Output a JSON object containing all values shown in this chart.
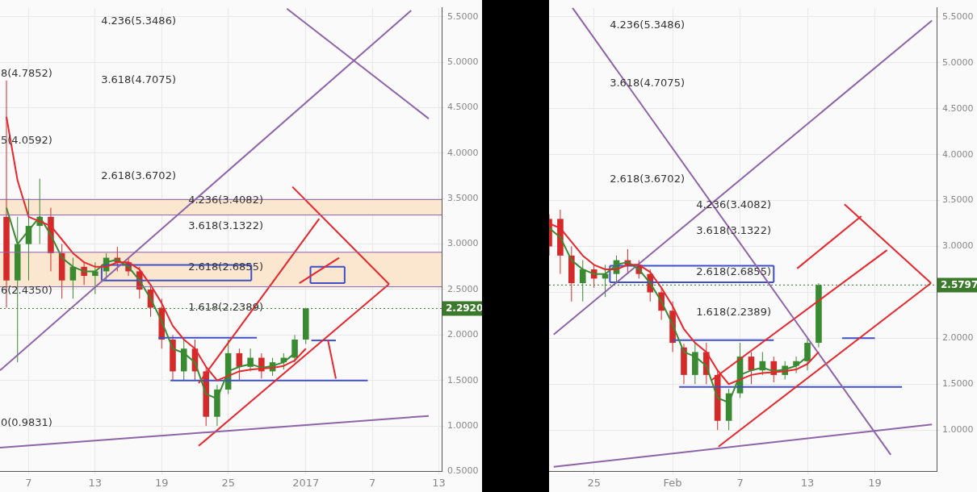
{
  "chart_data": [
    {
      "type": "candlestick",
      "x": [
        "2016-12-05",
        "2016-12-06",
        "2016-12-07",
        "2016-12-08",
        "2016-12-09",
        "2016-12-10",
        "2016-12-11",
        "2016-12-12",
        "2016-12-13",
        "2016-12-14",
        "2016-12-15",
        "2016-12-16",
        "2016-12-17",
        "2016-12-18",
        "2016-12-19",
        "2016-12-20",
        "2016-12-21",
        "2016-12-22",
        "2016-12-23",
        "2016-12-24",
        "2016-12-25",
        "2016-12-26",
        "2016-12-27",
        "2016-12-28",
        "2016-12-29",
        "2016-12-30",
        "2016-12-31",
        "2017-01-01"
      ],
      "ohlc": [
        [
          3.3,
          4.8,
          2.3,
          2.6
        ],
        [
          2.6,
          3.3,
          1.7,
          3.0
        ],
        [
          3.0,
          3.5,
          2.6,
          3.2
        ],
        [
          3.2,
          3.72,
          3.0,
          3.3
        ],
        [
          3.3,
          3.4,
          2.7,
          2.9
        ],
        [
          2.9,
          3.0,
          2.4,
          2.6
        ],
        [
          2.6,
          2.85,
          2.4,
          2.75
        ],
        [
          2.75,
          2.8,
          2.55,
          2.65
        ],
        [
          2.65,
          2.8,
          2.45,
          2.7
        ],
        [
          2.7,
          2.9,
          2.6,
          2.85
        ],
        [
          2.85,
          2.97,
          2.7,
          2.8
        ],
        [
          2.8,
          2.85,
          2.65,
          2.7
        ],
        [
          2.7,
          2.75,
          2.4,
          2.5
        ],
        [
          2.5,
          2.55,
          2.2,
          2.3
        ],
        [
          2.3,
          2.4,
          1.85,
          1.95
        ],
        [
          1.95,
          2.0,
          1.5,
          1.6
        ],
        [
          1.6,
          1.95,
          1.5,
          1.85
        ],
        [
          1.85,
          1.95,
          1.5,
          1.6
        ],
        [
          1.6,
          1.65,
          1.0,
          1.1
        ],
        [
          1.1,
          1.45,
          1.0,
          1.4
        ],
        [
          1.4,
          1.95,
          1.35,
          1.8
        ],
        [
          1.8,
          1.85,
          1.5,
          1.65
        ],
        [
          1.65,
          1.85,
          1.6,
          1.75
        ],
        [
          1.75,
          1.8,
          1.52,
          1.6
        ],
        [
          1.6,
          1.75,
          1.55,
          1.7
        ],
        [
          1.7,
          1.8,
          1.62,
          1.75
        ],
        [
          1.75,
          2.0,
          1.7,
          1.95
        ],
        [
          1.95,
          2.3,
          1.9,
          2.292
        ]
      ],
      "colors": [
        "#d42a2a",
        "#3a8a32",
        "#3a8a32",
        "#3a8a32",
        "#d42a2a",
        "#d42a2a",
        "#3a8a32",
        "#d42a2a",
        "#3a8a32",
        "#3a8a32",
        "#d42a2a",
        "#d42a2a",
        "#d42a2a",
        "#d42a2a",
        "#d42a2a",
        "#d42a2a",
        "#3a8a32",
        "#d42a2a",
        "#d42a2a",
        "#3a8a32",
        "#3a8a32",
        "#d42a2a",
        "#3a8a32",
        "#d42a2a",
        "#3a8a32",
        "#3a8a32",
        "#3a8a32",
        "#3a8a32"
      ],
      "series": [
        {
          "type": "line",
          "color": "#e8262b",
          "values": [
            4.4,
            3.7,
            3.3,
            3.25,
            3.2,
            3.05,
            2.9,
            2.8,
            2.75,
            2.75,
            2.8,
            2.8,
            2.72,
            2.55,
            2.35,
            2.1,
            1.95,
            1.85,
            1.65,
            1.5,
            1.55,
            1.6,
            1.62,
            1.63,
            1.64,
            1.66,
            1.72,
            1.85
          ]
        },
        {
          "type": "line",
          "color": "#3a8a32",
          "values": [
            3.4,
            3.0,
            3.15,
            3.3,
            3.1,
            2.85,
            2.75,
            2.7,
            2.7,
            2.8,
            2.83,
            2.75,
            2.6,
            2.4,
            2.15,
            1.85,
            1.8,
            1.7,
            1.35,
            1.3,
            1.6,
            1.65,
            1.68,
            1.64,
            1.66,
            1.7,
            1.8,
            null
          ]
        },
        {
          "type": "line",
          "color": "#8e63a8",
          "x": [
            "2016-12-04T10:00",
            "2017-01-10T12:00"
          ],
          "values": [
            1.61,
            5.57
          ]
        },
        {
          "type": "line",
          "color": "#8e63a8",
          "x": [
            "2016-12-30T07:00",
            "2017-01-12T02:00"
          ],
          "values": [
            5.59,
            4.38
          ]
        },
        {
          "type": "line",
          "color": "#8e63a8",
          "x": [
            "2016-12-04T10:00",
            "2017-01-12T02:00"
          ],
          "values": [
            0.76,
            1.11
          ]
        },
        {
          "type": "line",
          "color": "#e8262b",
          "x": [
            "2016-12-22T08:00",
            "2017-01-08T12:00"
          ],
          "values": [
            0.78,
            2.56
          ]
        },
        {
          "type": "line",
          "color": "#e8262b",
          "x": [
            "2016-12-30T19:00",
            "2017-01-08T12:00"
          ],
          "values": [
            3.63,
            2.56
          ]
        },
        {
          "type": "line",
          "color": "#e8262b",
          "x": [
            "2016-12-22T08:00",
            "2017-01-02T05:00"
          ],
          "values": [
            1.47,
            3.28
          ]
        },
        {
          "type": "line",
          "color": "#e8262b",
          "x": [
            "2016-12-31T10:00",
            "2017-01-04T00:00"
          ],
          "values": [
            2.57,
            2.85
          ]
        },
        {
          "type": "line",
          "color": "#e8262b",
          "x": [
            "2017-01-03T00:00",
            "2017-01-03T17:00"
          ],
          "values": [
            1.94,
            1.52
          ]
        },
        {
          "type": "line",
          "color": "#3f4fc8",
          "x": [
            "2016-12-19T19:00",
            "2017-01-06T14:00"
          ],
          "values": [
            1.5,
            1.5
          ]
        },
        {
          "type": "line",
          "color": "#3f4fc8",
          "x": [
            "2016-12-18T17:00",
            "2016-12-27T14:00"
          ],
          "values": [
            1.97,
            1.97
          ]
        },
        {
          "type": "line",
          "color": "#3f4fc8",
          "x": [
            "2017-01-01T12:00",
            "2017-01-03T17:00"
          ],
          "values": [
            1.94,
            1.94
          ]
        },
        {
          "type": "line",
          "color": "#3f4fc8",
          "x": [
            "2016-12-13T14:00",
            "2016-12-27T02:00"
          ],
          "values": [
            2.77,
            2.77
          ]
        },
        {
          "type": "line",
          "color": "#3f4fc8",
          "x": [
            "2016-12-13T14:00",
            "2016-12-27T02:00"
          ],
          "values": [
            2.6,
            2.6
          ]
        },
        {
          "type": "line",
          "color": "#3f4fc8",
          "x": [
            "2016-12-13T14:00",
            "2016-12-13T14:00"
          ],
          "values": [
            2.6,
            2.77
          ]
        },
        {
          "type": "line",
          "color": "#3f4fc8",
          "x": [
            "2016-12-27T02:00",
            "2016-12-27T02:00"
          ],
          "values": [
            2.6,
            2.77
          ]
        },
        {
          "type": "line",
          "color": "#3f4fc8",
          "x": [
            "2017-01-01T10:00",
            "2017-01-04T12:00"
          ],
          "values": [
            2.75,
            2.75
          ]
        },
        {
          "type": "line",
          "color": "#3f4fc8",
          "x": [
            "2017-01-01T10:00",
            "2017-01-04T12:00"
          ],
          "values": [
            2.57,
            2.57
          ]
        },
        {
          "type": "line",
          "color": "#3f4fc8",
          "x": [
            "2017-01-01T10:00",
            "2017-01-01T10:00"
          ],
          "values": [
            2.57,
            2.75
          ]
        },
        {
          "type": "line",
          "color": "#3f4fc8",
          "x": [
            "2017-01-04T12:00",
            "2017-01-04T12:00"
          ],
          "values": [
            2.57,
            2.75
          ]
        }
      ],
      "bands": [
        {
          "axis": "y",
          "from": 3.32,
          "to": 3.49,
          "color": "#fbe6d0"
        },
        {
          "axis": "y",
          "from": 2.53,
          "to": 2.91,
          "color": "#fbe6d0"
        }
      ],
      "ref_lines": [
        {
          "axis": "y",
          "value": 2.292,
          "label": "2.2920",
          "color": "#3a7a2a",
          "line_style": "dotted"
        },
        {
          "axis": "y",
          "value": 3.49,
          "color": "#8e63a8",
          "line_style": "solid"
        },
        {
          "axis": "y",
          "value": 3.32,
          "color": "#8e63a8",
          "line_style": "solid"
        },
        {
          "axis": "y",
          "value": 2.91,
          "color": "#8e63a8",
          "line_style": "solid"
        },
        {
          "axis": "y",
          "value": 2.53,
          "color": "#8e63a8",
          "line_style": "solid"
        }
      ],
      "annotations": [
        "4.236(5.3486)",
        "3.618(4.7075)",
        "2.618(3.6702)",
        "4.236(3.4082)",
        "3.618(3.1322)",
        "2.618(2.6855)",
        "1.618(2.2389)",
        "8(4.7852)",
        "5(4.0592)",
        "6(2.4350)",
        "0(0.9831)"
      ],
      "xlim": [
        "2016-12-04T10:00",
        "2017-01-13T06:00"
      ],
      "xticks": [
        {
          "value": "2016-12-07",
          "label": "7"
        },
        {
          "value": "2016-12-13",
          "label": "13"
        },
        {
          "value": "2016-12-19",
          "label": "19"
        },
        {
          "value": "2016-12-25",
          "label": "25"
        },
        {
          "value": "2017-01-01",
          "label": "2017"
        },
        {
          "value": "2017-01-07",
          "label": "7"
        },
        {
          "value": "2017-01-13",
          "label": "13"
        }
      ],
      "ylim": [
        0.5,
        5.6
      ],
      "yticks": [
        {
          "value": 0.5,
          "label": "0.5000"
        },
        {
          "value": 1,
          "label": "1.0000"
        },
        {
          "value": 1.5,
          "label": "1.5000"
        },
        {
          "value": 2,
          "label": "2.0000"
        },
        {
          "value": 2.5,
          "label": "2.5000"
        },
        {
          "value": 3,
          "label": "3.0000"
        },
        {
          "value": 3.5,
          "label": "3.5000"
        },
        {
          "value": 4,
          "label": "4.0000"
        },
        {
          "value": 4.5,
          "label": "4.5000"
        },
        {
          "value": 5,
          "label": "5.0000"
        },
        {
          "value": 5.5,
          "label": "5.5000"
        }
      ],
      "grid": true
    },
    {
      "type": "candlestick",
      "x": [
        "2017-01-21",
        "2017-01-22",
        "2017-01-23",
        "2017-01-24",
        "2017-01-25",
        "2017-01-26",
        "2017-01-27",
        "2017-01-28",
        "2017-01-29",
        "2017-01-30",
        "2017-01-31",
        "2017-02-01",
        "2017-02-02",
        "2017-02-03",
        "2017-02-04",
        "2017-02-05",
        "2017-02-06",
        "2017-02-07",
        "2017-02-08",
        "2017-02-09",
        "2017-02-10",
        "2017-02-11",
        "2017-02-12",
        "2017-02-13",
        "2017-02-14"
      ],
      "ohlc": [
        [
          3.3,
          3.35,
          2.9,
          3.0
        ],
        [
          3.3,
          3.4,
          2.7,
          2.9
        ],
        [
          2.9,
          3.0,
          2.4,
          2.6
        ],
        [
          2.6,
          2.85,
          2.4,
          2.75
        ],
        [
          2.75,
          2.8,
          2.55,
          2.65
        ],
        [
          2.65,
          2.8,
          2.45,
          2.7
        ],
        [
          2.7,
          2.9,
          2.6,
          2.85
        ],
        [
          2.85,
          2.97,
          2.7,
          2.8
        ],
        [
          2.8,
          2.85,
          2.65,
          2.7
        ],
        [
          2.7,
          2.75,
          2.4,
          2.5
        ],
        [
          2.5,
          2.55,
          2.2,
          2.3
        ],
        [
          2.3,
          2.4,
          1.85,
          1.95
        ],
        [
          1.9,
          1.94,
          1.5,
          1.6
        ],
        [
          1.6,
          1.95,
          1.5,
          1.85
        ],
        [
          1.85,
          1.95,
          1.5,
          1.6
        ],
        [
          1.6,
          1.65,
          1.0,
          1.1
        ],
        [
          1.1,
          1.45,
          1.0,
          1.4
        ],
        [
          1.4,
          1.95,
          1.35,
          1.8
        ],
        [
          1.8,
          1.85,
          1.5,
          1.65
        ],
        [
          1.65,
          1.85,
          1.6,
          1.75
        ],
        [
          1.75,
          1.8,
          1.52,
          1.6
        ],
        [
          1.6,
          1.75,
          1.55,
          1.7
        ],
        [
          1.7,
          1.8,
          1.62,
          1.75
        ],
        [
          1.75,
          2.0,
          1.65,
          1.95
        ],
        [
          1.95,
          2.6,
          1.9,
          2.5797
        ]
      ],
      "colors": [
        "#d42a2a",
        "#d42a2a",
        "#d42a2a",
        "#3a8a32",
        "#d42a2a",
        "#3a8a32",
        "#3a8a32",
        "#d42a2a",
        "#d42a2a",
        "#d42a2a",
        "#d42a2a",
        "#d42a2a",
        "#d42a2a",
        "#3a8a32",
        "#d42a2a",
        "#d42a2a",
        "#3a8a32",
        "#3a8a32",
        "#d42a2a",
        "#3a8a32",
        "#d42a2a",
        "#3a8a32",
        "#3a8a32",
        "#3a8a32",
        "#3a8a32"
      ],
      "series": [
        {
          "type": "line",
          "color": "#e8262b",
          "values": [
            3.25,
            3.2,
            3.05,
            2.9,
            2.8,
            2.75,
            2.75,
            2.8,
            2.8,
            2.72,
            2.55,
            2.35,
            2.1,
            1.95,
            1.85,
            1.65,
            1.5,
            1.55,
            1.6,
            1.62,
            1.63,
            1.64,
            1.66,
            1.72,
            1.85
          ]
        },
        {
          "type": "line",
          "color": "#3a8a32",
          "values": [
            3.2,
            3.1,
            2.85,
            2.75,
            2.7,
            2.7,
            2.8,
            2.83,
            2.75,
            2.6,
            2.4,
            2.15,
            1.85,
            1.8,
            1.7,
            1.35,
            1.3,
            1.6,
            1.65,
            1.68,
            1.64,
            1.66,
            1.7,
            1.8,
            null
          ]
        },
        {
          "type": "line",
          "color": "#8e63a8",
          "x": [
            "2017-01-21T10:00",
            "2017-02-24T02:00"
          ],
          "values": [
            2.04,
            5.46
          ]
        },
        {
          "type": "line",
          "color": "#8e63a8",
          "x": [
            "2017-01-23T02:00",
            "2017-02-20T10:00"
          ],
          "values": [
            5.6,
            0.73
          ]
        },
        {
          "type": "line",
          "color": "#8e63a8",
          "x": [
            "2017-01-21T10:00",
            "2017-02-24T02:00"
          ],
          "values": [
            0.6,
            1.06
          ]
        },
        {
          "type": "line",
          "color": "#e8262b",
          "x": [
            "2017-02-05T02:00",
            "2017-02-24T00:00"
          ],
          "values": [
            0.82,
            2.6
          ]
        },
        {
          "type": "line",
          "color": "#e8262b",
          "x": [
            "2017-02-16T07:00",
            "2017-02-24T00:00"
          ],
          "values": [
            3.46,
            2.6
          ]
        },
        {
          "type": "line",
          "color": "#e8262b",
          "x": [
            "2017-02-12T02:00",
            "2017-02-17T19:00"
          ],
          "values": [
            2.76,
            3.33
          ]
        },
        {
          "type": "line",
          "color": "#e8262b",
          "x": [
            "2017-02-04T10:00",
            "2017-02-20T02:00"
          ],
          "values": [
            1.54,
            2.96
          ]
        },
        {
          "type": "line",
          "color": "#3f4fc8",
          "x": [
            "2017-02-01T14:00",
            "2017-02-21T10:00"
          ],
          "values": [
            1.47,
            1.47
          ]
        },
        {
          "type": "line",
          "color": "#3f4fc8",
          "x": [
            "2017-02-01T00:00",
            "2017-02-10T00:00"
          ],
          "values": [
            1.98,
            1.98
          ]
        },
        {
          "type": "line",
          "color": "#3f4fc8",
          "x": [
            "2017-02-16T02:00",
            "2017-02-19T00:00"
          ],
          "values": [
            2.0,
            2.0
          ]
        },
        {
          "type": "line",
          "color": "#3f4fc8",
          "x": [
            "2017-01-26T10:00",
            "2017-02-10T00:00"
          ],
          "values": [
            2.79,
            2.79
          ]
        },
        {
          "type": "line",
          "color": "#3f4fc8",
          "x": [
            "2017-01-26T10:00",
            "2017-02-10T00:00"
          ],
          "values": [
            2.61,
            2.61
          ]
        },
        {
          "type": "line",
          "color": "#3f4fc8",
          "x": [
            "2017-01-26T10:00",
            "2017-01-26T10:00"
          ],
          "values": [
            2.61,
            2.79
          ]
        },
        {
          "type": "line",
          "color": "#3f4fc8",
          "x": [
            "2017-02-10T00:00",
            "2017-02-10T00:00"
          ],
          "values": [
            2.61,
            2.79
          ]
        }
      ],
      "ref_lines": [
        {
          "axis": "y",
          "value": 2.5797,
          "label": "2.5797",
          "color": "#3a7a2a",
          "line_style": "dotted"
        }
      ],
      "annotations": [
        "4.236(5.3486)",
        "3.618(4.7075)",
        "2.618(3.6702)",
        "4.236(3.4082)",
        "3.618(3.1322)",
        "2.618(2.6855)",
        "1.618(2.2389)"
      ],
      "xlim": [
        "2017-01-21T00:00",
        "2017-02-24T12:00"
      ],
      "xticks": [
        {
          "value": "2017-01-25",
          "label": "25"
        },
        {
          "value": "2017-02-01",
          "label": "Feb"
        },
        {
          "value": "2017-02-07",
          "label": "7"
        },
        {
          "value": "2017-02-13",
          "label": "13"
        },
        {
          "value": "2017-02-19",
          "label": "19"
        }
      ],
      "ylim": [
        0.55,
        5.6
      ],
      "yticks": [
        {
          "value": 1,
          "label": "1.0000"
        },
        {
          "value": 1.5,
          "label": "1.5000"
        },
        {
          "value": 2,
          "label": "2.0000"
        },
        {
          "value": 2.5,
          "label": null
        },
        {
          "value": 3,
          "label": "3.0000"
        },
        {
          "value": 3.5,
          "label": "3.5000"
        },
        {
          "value": 4,
          "label": "4.0000"
        },
        {
          "value": 4.5,
          "label": "4.5000"
        },
        {
          "value": 5,
          "label": "5.0000"
        },
        {
          "value": 5.5,
          "label": "5.5000"
        }
      ],
      "grid": true
    }
  ]
}
